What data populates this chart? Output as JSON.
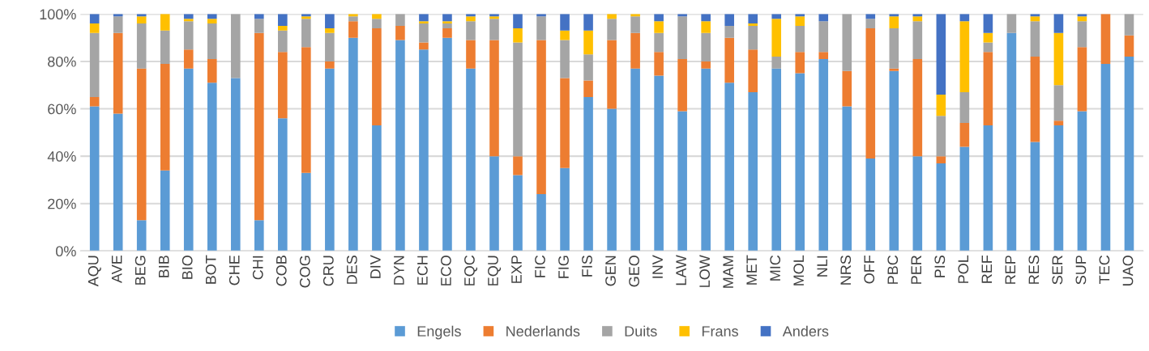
{
  "chart_data": {
    "type": "bar",
    "stacked": true,
    "categories": [
      "AQU",
      "AVE",
      "BEG",
      "BIB",
      "BIO",
      "BOT",
      "CHE",
      "CHI",
      "COB",
      "COG",
      "CRU",
      "DES",
      "DIV",
      "DYN",
      "ECH",
      "ECO",
      "EQC",
      "EQU",
      "EXP",
      "FIC",
      "FIG",
      "FIS",
      "GEN",
      "GEO",
      "INV",
      "LAW",
      "LOW",
      "MAM",
      "MET",
      "MIC",
      "MOL",
      "NLI",
      "NRS",
      "OFF",
      "PBC",
      "PER",
      "PIS",
      "POL",
      "REF",
      "REP",
      "RES",
      "SER",
      "SUP",
      "TEC",
      "UAO"
    ],
    "series": [
      {
        "name": "Engels",
        "color": "#5b9bd5",
        "values": [
          61,
          58,
          13,
          34,
          77,
          71,
          73,
          13,
          56,
          33,
          77,
          90,
          53,
          89,
          85,
          90,
          77,
          40,
          32,
          24,
          35,
          65,
          60,
          77,
          74,
          59,
          77,
          71,
          67,
          77,
          75,
          81,
          61,
          39,
          76,
          40,
          37,
          44,
          53,
          92,
          46,
          53,
          59,
          79,
          82
        ]
      },
      {
        "name": "Nederlands",
        "color": "#ed7d31",
        "values": [
          4,
          34,
          64,
          45,
          8,
          10,
          0,
          79,
          28,
          53,
          3,
          7,
          41,
          6,
          3,
          4,
          12,
          49,
          8,
          65,
          38,
          7,
          29,
          15,
          10,
          22,
          3,
          19,
          18,
          0,
          9,
          3,
          15,
          55,
          1,
          41,
          3,
          10,
          31,
          0,
          36,
          2,
          27,
          21,
          9
        ]
      },
      {
        "name": "Duits",
        "color": "#a5a5a5",
        "values": [
          27,
          7,
          19,
          14,
          12,
          15,
          27,
          6,
          9,
          12,
          12,
          2,
          4,
          5,
          8,
          2,
          8,
          9,
          48,
          10,
          16,
          11,
          9,
          7,
          8,
          18,
          12,
          5,
          10,
          5,
          11,
          13,
          24,
          4,
          17,
          16,
          17,
          13,
          4,
          8,
          15,
          15,
          11,
          0,
          9
        ]
      },
      {
        "name": "Frans",
        "color": "#ffc000",
        "values": [
          4,
          0,
          3,
          7,
          1,
          2,
          0,
          0,
          2,
          1,
          2,
          1,
          2,
          0,
          1,
          1,
          2,
          1,
          6,
          0,
          4,
          10,
          2,
          1,
          5,
          0,
          5,
          0,
          1,
          16,
          4,
          0,
          0,
          0,
          5,
          2,
          9,
          30,
          4,
          0,
          2,
          22,
          2,
          0,
          0
        ]
      },
      {
        "name": "Anders",
        "color": "#4472c4",
        "values": [
          4,
          1,
          1,
          0,
          2,
          2,
          0,
          2,
          5,
          1,
          6,
          0,
          0,
          0,
          3,
          3,
          1,
          1,
          6,
          1,
          7,
          7,
          0,
          0,
          3,
          1,
          3,
          5,
          4,
          2,
          1,
          3,
          0,
          2,
          1,
          1,
          34,
          3,
          8,
          0,
          1,
          8,
          1,
          0,
          0
        ]
      }
    ],
    "ylim": [
      0,
      100
    ],
    "yticks": [
      {
        "value": 0,
        "label": "0%"
      },
      {
        "value": 20,
        "label": "20%"
      },
      {
        "value": 40,
        "label": "40%"
      },
      {
        "value": 60,
        "label": "60%"
      },
      {
        "value": 80,
        "label": "80%"
      },
      {
        "value": 100,
        "label": "100%"
      }
    ],
    "grid": "y",
    "legend": "bottom"
  }
}
